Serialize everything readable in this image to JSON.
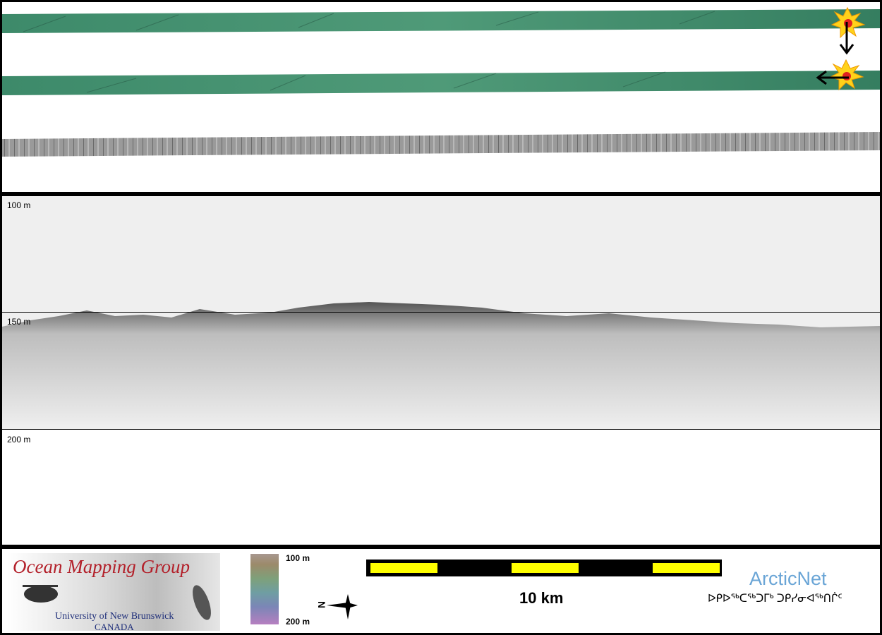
{
  "profile": {
    "depth_labels": [
      "100 m",
      "150 m",
      "200 m"
    ]
  },
  "footer": {
    "logo_omg": {
      "title": "Ocean Mapping Group",
      "university": "University of New Brunswick",
      "country": "CANADA"
    },
    "colorbar": {
      "top_label": "100 m",
      "bottom_label": "200 m"
    },
    "compass": {
      "letter": "N"
    },
    "scalebar": {
      "label": "10 km"
    },
    "logo_arcticnet": {
      "name": "ArcticNet",
      "syllabics": "ᐅᑭᐅᖅᑕᖅᑐᒥᒃ ᑐᑭᓯᓂᐊᖅᑎᒌᑦ"
    }
  },
  "colors": {
    "swath_green": "#3f8a6b",
    "sonar_gray": "#8c8c8c",
    "scale_yellow": "#ffff00",
    "arcticnet_blue": "#6aa5d6",
    "omg_red": "#b3202a"
  }
}
